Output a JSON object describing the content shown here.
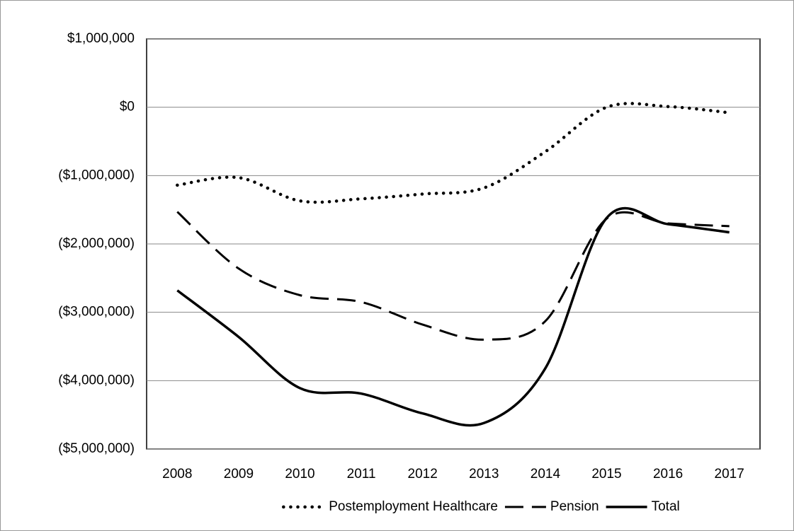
{
  "chart_data": {
    "type": "line",
    "categories": [
      "2008",
      "2009",
      "2010",
      "2011",
      "2012",
      "2013",
      "2014",
      "2015",
      "2016",
      "2017"
    ],
    "series": [
      {
        "name": "Postemployment Healthcare",
        "color": "#000000",
        "style": "dotted",
        "values": [
          -1140000,
          -1030000,
          -1370000,
          -1340000,
          -1270000,
          -1180000,
          -650000,
          0,
          10000,
          -80000
        ]
      },
      {
        "name": "Pension",
        "color": "#000000",
        "style": "dashed",
        "values": [
          -1530000,
          -2360000,
          -2750000,
          -2850000,
          -3180000,
          -3400000,
          -3130000,
          -1630000,
          -1700000,
          -1740000
        ]
      },
      {
        "name": "Total",
        "color": "#000000",
        "style": "solid",
        "values": [
          -2680000,
          -3360000,
          -4110000,
          -4190000,
          -4480000,
          -4620000,
          -3820000,
          -1620000,
          -1710000,
          -1830000
        ]
      }
    ],
    "ylim": [
      -5000000,
      1000000
    ],
    "yticks": [
      {
        "value": -5000000,
        "label": "($5,000,000)"
      },
      {
        "value": -4000000,
        "label": "($4,000,000)"
      },
      {
        "value": -3000000,
        "label": "($3,000,000)"
      },
      {
        "value": -2000000,
        "label": "($2,000,000)"
      },
      {
        "value": -1000000,
        "label": "($1,000,000)"
      },
      {
        "value": 0,
        "label": "$0"
      },
      {
        "value": 1000000,
        "label": "$1,000,000"
      }
    ],
    "grid": true,
    "legend": "bottom"
  }
}
